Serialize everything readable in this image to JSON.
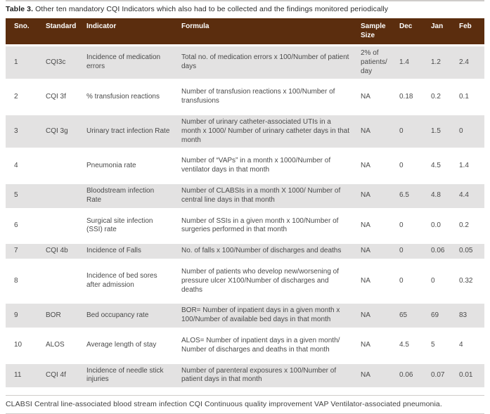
{
  "caption": {
    "label": "Table 3.",
    "text": "Other ten mandatory CQI Indicators which also had to be collected and the findings monitored periodically"
  },
  "table": {
    "columns": [
      "Sno.",
      "Standard",
      "Indicator",
      "Formula",
      "Sample Size",
      "Dec",
      "Jan",
      "Feb"
    ],
    "fields": [
      "sno",
      "standard",
      "indicator",
      "formula",
      "sample",
      "dec",
      "jan",
      "feb"
    ],
    "rows": [
      {
        "sno": "1",
        "standard": "CQI3c",
        "indicator": "Incidence of medication errors",
        "formula": "Total no. of medication errors x 100/Number of patient days",
        "sample": "2% of patients/ day",
        "dec": "1.4",
        "jan": "1.2",
        "feb": "2.4"
      },
      {
        "sno": "2",
        "standard": "CQI 3f",
        "indicator": "% transfusion reactions",
        "formula": "Number of transfusion reactions x 100/Number of transfusions",
        "sample": "NA",
        "dec": "0.18",
        "jan": "0.2",
        "feb": "0.1"
      },
      {
        "sno": "3",
        "standard": "CQI 3g",
        "indicator": "Urinary tract infection Rate",
        "formula": "Number of urinary catheter-associated UTIs in a month x 1000/ Number of urinary catheter days in that month",
        "sample": "NA",
        "dec": "0",
        "jan": "1.5",
        "feb": "0"
      },
      {
        "sno": "4",
        "standard": "",
        "indicator": "Pneumonia rate",
        "formula": "Number of “VAPs” in a month x 1000/Number of ventilator days in that month",
        "sample": "NA",
        "dec": "0",
        "jan": "4.5",
        "feb": "1.4"
      },
      {
        "sno": "5",
        "standard": "",
        "indicator": "Bloodstream infection Rate",
        "formula": "Number of CLABSIs in a month X 1000/ Number of central line days in that month",
        "sample": "NA",
        "dec": "6.5",
        "jan": "4.8",
        "feb": "4.4"
      },
      {
        "sno": "6",
        "standard": "",
        "indicator": "Surgical site infection (SSI) rate",
        "formula": "Number of SSIs in a given month x 100/Number of surgeries performed in that month",
        "sample": "NA",
        "dec": "0",
        "jan": "0.0",
        "feb": "0.2"
      },
      {
        "sno": "7",
        "standard": "CQI 4b",
        "indicator": "Incidence of Falls",
        "formula": "No. of falls x 100/Number of discharges and deaths",
        "sample": "NA",
        "dec": "0",
        "jan": "0.06",
        "feb": "0.05"
      },
      {
        "sno": "8",
        "standard": "",
        "indicator": "Incidence of bed sores after admission",
        "formula": "Number of patients who develop new/worsening of pressure ulcer X100/Number of discharges and deaths",
        "sample": "NA",
        "dec": "0",
        "jan": "0",
        "feb": "0.32"
      },
      {
        "sno": "9",
        "standard": "BOR",
        "indicator": "Bed occupancy rate",
        "formula": "BOR= Number of inpatient days in a given month x 100/Number of available bed days in that month",
        "sample": "NA",
        "dec": "65",
        "jan": "69",
        "feb": "83"
      },
      {
        "sno": "10",
        "standard": "ALOS",
        "indicator": "Average length of stay",
        "formula": "ALOS= Number of inpatient days in a given month/ Number of discharges and deaths in that month",
        "sample": "NA",
        "dec": "4.5",
        "jan": "5",
        "feb": "4"
      },
      {
        "sno": "11",
        "standard": "CQI 4f",
        "indicator": "Incidence of needle stick injuries",
        "formula": "Number of parenteral exposures x 100/Number of patient days in that month",
        "sample": "NA",
        "dec": "0.06",
        "jan": "0.07",
        "feb": "0.01"
      }
    ]
  },
  "footnote": "CLABSI Central line-associated blood stream infection CQI Continuous quality improvement VAP Ventilator-associated pneumonia.",
  "colors": {
    "header_bg": "#5B2D0E",
    "stripe": "#E3E2E2",
    "rule_light": "#CFCCCA"
  }
}
